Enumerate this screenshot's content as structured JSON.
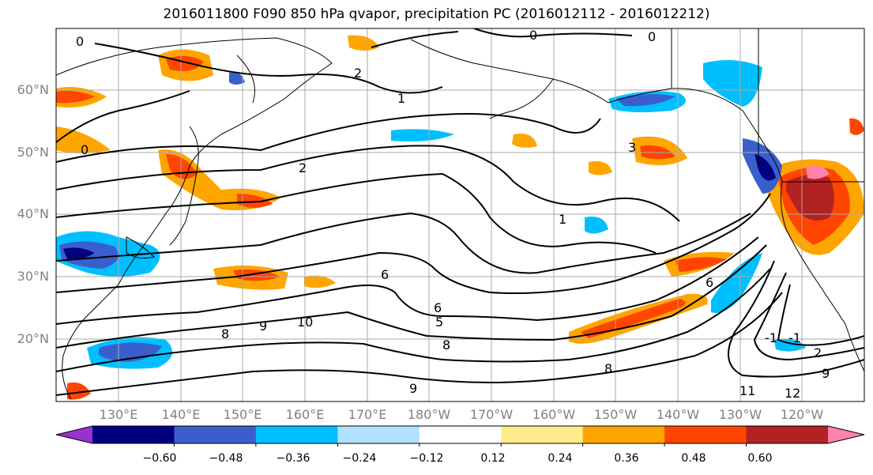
{
  "title": "2016011800 F090 850 hPa qvapor, precipitation PC (2016012112 - 2016012212)",
  "lat_labels": [
    "60°N",
    "50°N",
    "40°N",
    "30°N",
    "20°N"
  ],
  "lon_labels": [
    "130°E",
    "140°E",
    "150°E",
    "160°E",
    "170°E",
    "180°W",
    "170°W",
    "160°W",
    "150°W",
    "140°W",
    "130°W",
    "120°W"
  ],
  "colorbar": {
    "ticks": [
      "−0.60",
      "−0.48",
      "−0.36",
      "−0.24",
      "−0.12",
      "0.12",
      "0.24",
      "0.36",
      "0.48",
      "0.60"
    ],
    "colors": [
      "#9932cc",
      "#000080",
      "#3a5fcd",
      "#00bfff",
      "#b0e2ff",
      "#ffffff",
      "#ffec8b",
      "#ffa500",
      "#ff4500",
      "#b22222",
      "#ff82ab"
    ]
  },
  "contour_labels": [
    "0",
    "0",
    "0",
    "1",
    "1",
    "2",
    "2",
    "3",
    "5",
    "6",
    "6",
    "6",
    "8",
    "8",
    "8",
    "9",
    "9",
    "10",
    "12",
    "-1",
    "-1",
    "2",
    "11",
    "9"
  ]
}
